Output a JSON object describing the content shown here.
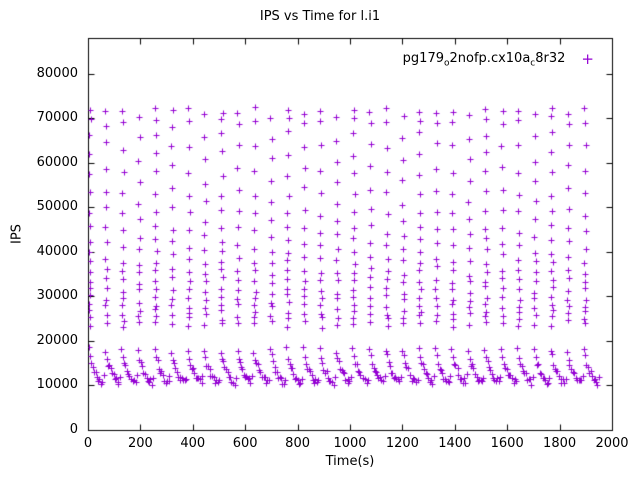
{
  "page": {
    "background": "#ffffff"
  },
  "chart_data": {
    "type": "scatter",
    "title": "IPS vs Time for l.i1",
    "xlabel": "Time(s)",
    "ylabel": "IPS",
    "xlim": [
      0,
      2000
    ],
    "ylim": [
      0,
      88000
    ],
    "x_ticks": [
      0,
      200,
      400,
      600,
      800,
      1000,
      1200,
      1400,
      1600,
      1800,
      2000
    ],
    "y_ticks": [
      0,
      10000,
      20000,
      30000,
      40000,
      50000,
      60000,
      70000,
      80000
    ],
    "grid": false,
    "legend_position": "top-right",
    "marker_glyph": "+",
    "series": [
      {
        "name": "pg179_o2nofp.cx10a_c8r32",
        "color": "#9400d3",
        "legend_parts": {
          "p1": "pg179",
          "s1": "o",
          "p2": "2nofp.cx10a",
          "s2": "c",
          "p3": "8r32"
        },
        "bursts": {
          "x_start": 6,
          "x_period": 63,
          "count": 31,
          "x_jitter": 4,
          "y_jitter": 600,
          "y_cycles": [
            [
              23800,
              25200,
              26700,
              28300,
              30000,
              31800,
              33700,
              35700,
              37800,
              40000,
              42500,
              45500,
              49000,
              53000,
              57500,
              62000,
              66500,
              70000,
              71800
            ],
            [
              24200,
              25900,
              27700,
              29600,
              31600,
              33800,
              36200,
              39000,
              42000,
              45500,
              49500,
              54000,
              59000,
              64000,
              68500,
              71300
            ],
            [
              23500,
              24900,
              26400,
              28000,
              29700,
              31500,
              33400,
              35500,
              38000,
              41000,
              44500,
              48500,
              53000,
              58000,
              63500,
              69000,
              72000
            ],
            [
              24000,
              25600,
              27300,
              29100,
              31000,
              33000,
              35200,
              37600,
              40300,
              43500,
              47000,
              51000,
              55500,
              60500,
              65500,
              70500
            ]
          ]
        },
        "steady_band": {
          "x_start": 2,
          "x_step": 5.25,
          "x_end": 1952,
          "x_jitter": 2,
          "y_jitter": 700,
          "cycle": [
            18000,
            16400,
            15100,
            14100,
            13300,
            12600,
            12100,
            11600,
            11200,
            10900,
            10700,
            11800
          ]
        }
      }
    ]
  }
}
